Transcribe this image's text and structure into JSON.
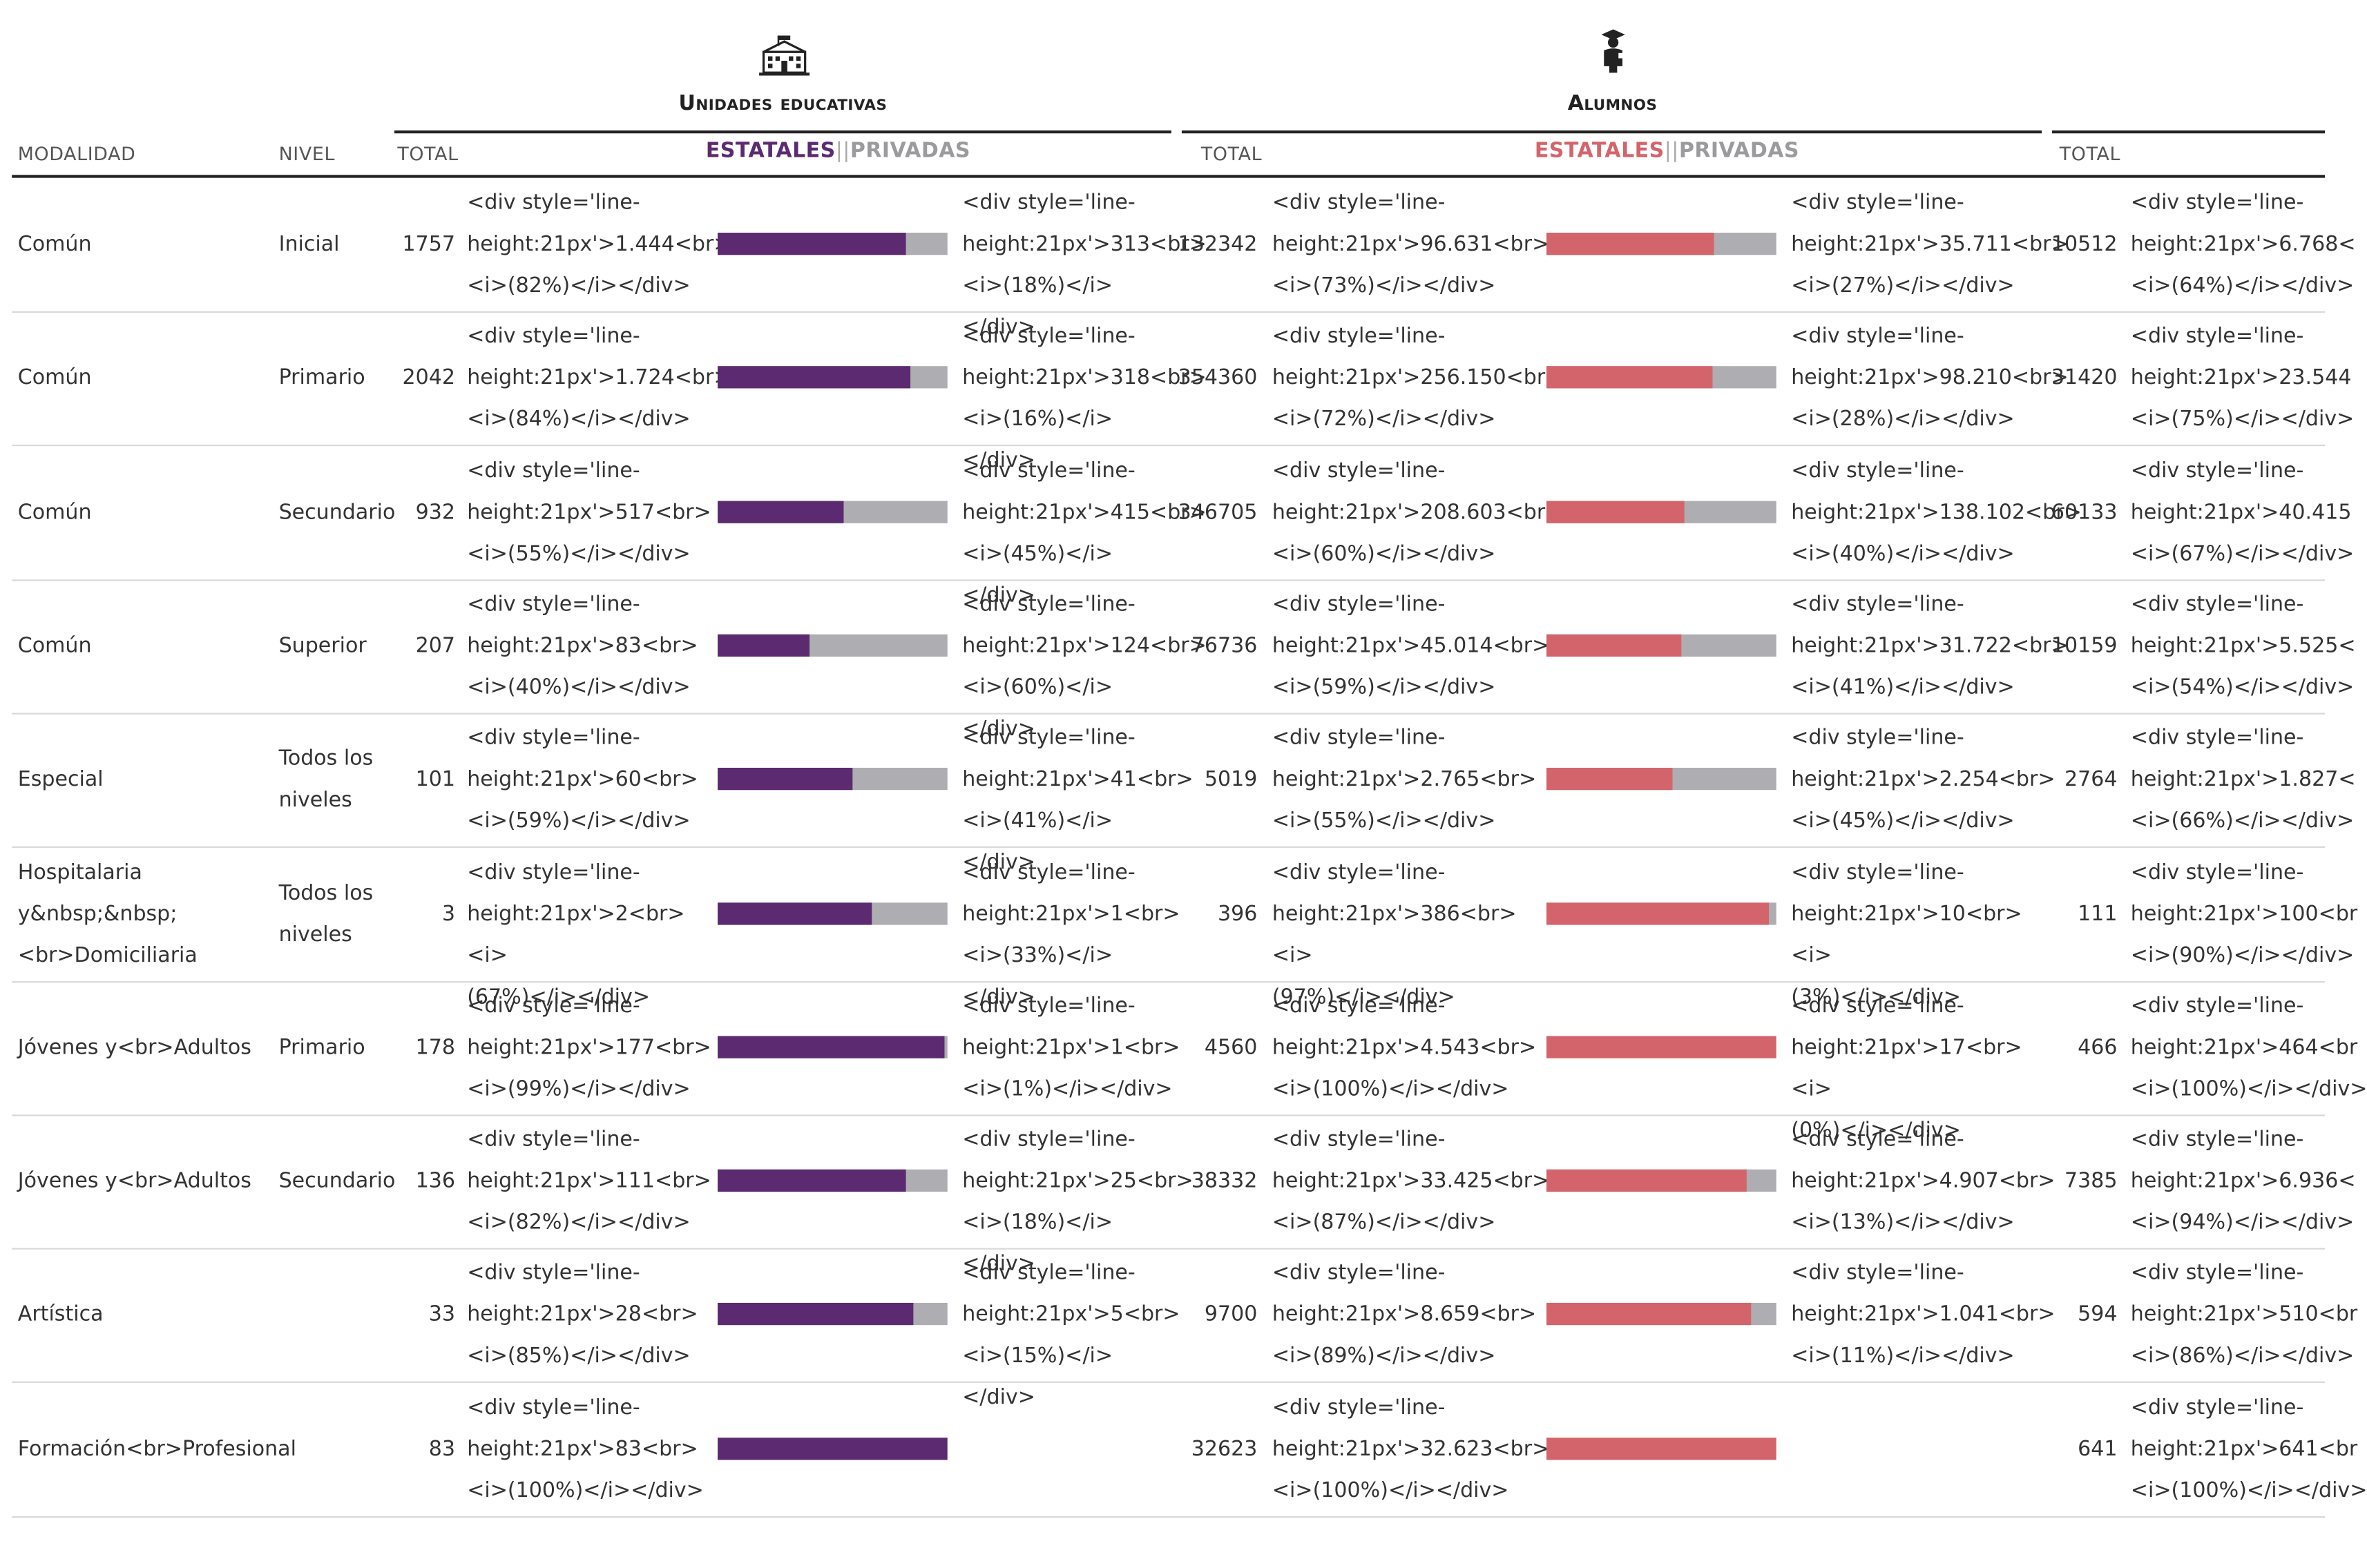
{
  "groups": [
    {
      "title": "Unidades educativas",
      "icon": "school-building-icon",
      "total_label": "TOTAL",
      "legend_state": "ESTATALES",
      "legend_sep": "||",
      "legend_private": "PRIVADAS",
      "state_color": "#5c2a70",
      "private_color": "#9b9b9e"
    },
    {
      "title": "Alumnos",
      "icon": "graduate-student-icon",
      "total_label": "TOTAL",
      "legend_state": "ESTATALES",
      "legend_sep": "||",
      "legend_private": "PRIVADAS",
      "state_color": "#d4646b",
      "private_color": "#9b9b9e"
    },
    {
      "title": "",
      "icon": "",
      "total_label": "TOTAL"
    }
  ],
  "columns": {
    "modalidad": "MODALIDAD",
    "nivel": "NIVEL"
  },
  "colors": {
    "bar_track": "#aeadb1",
    "purple": "#5c2a70",
    "red": "#d4646b"
  },
  "rows": [
    {
      "modalidad": "Común",
      "nivel": "Inicial",
      "ue_total": "1757",
      "ue_state_text": "<div style='line-\nheight:21px'>1.444<br>\n<i>(82%)</i></div>",
      "ue_state_pct": 82,
      "ue_priv_text": "<div style='line-\nheight:21px'>313<br>\n<i>(18%)</i></div>",
      "al_total": "132342",
      "al_state_text": "<div style='line-\nheight:21px'>96.631<br>\n<i>(73%)</i></div>",
      "al_state_pct": 73,
      "al_priv_text": "<div style='line-\nheight:21px'>35.711<br>\n<i>(27%)</i></div>",
      "c3_total": "10512",
      "c3_state_text": "<div style='line-\nheight:21px'>6.768<\n<i>(64%)</i></div>"
    },
    {
      "modalidad": "Común",
      "nivel": "Primario",
      "ue_total": "2042",
      "ue_state_text": "<div style='line-\nheight:21px'>1.724<br>\n<i>(84%)</i></div>",
      "ue_state_pct": 84,
      "ue_priv_text": "<div style='line-\nheight:21px'>318<br>\n<i>(16%)</i></div>",
      "al_total": "354360",
      "al_state_text": "<div style='line-\nheight:21px'>256.150<br>\n<i>(72%)</i></div>",
      "al_state_pct": 72,
      "al_priv_text": "<div style='line-\nheight:21px'>98.210<br>\n<i>(28%)</i></div>",
      "c3_total": "31420",
      "c3_state_text": "<div style='line-\nheight:21px'>23.544\n<i>(75%)</i></div>"
    },
    {
      "modalidad": "Común",
      "nivel": "Secundario",
      "ue_total": "932",
      "ue_state_text": "<div style='line-\nheight:21px'>517<br>\n<i>(55%)</i></div>",
      "ue_state_pct": 55,
      "ue_priv_text": "<div style='line-\nheight:21px'>415<br>\n<i>(45%)</i></div>",
      "al_total": "346705",
      "al_state_text": "<div style='line-\nheight:21px'>208.603<br>\n<i>(60%)</i></div>",
      "al_state_pct": 60,
      "al_priv_text": "<div style='line-\nheight:21px'>138.102<br>\n<i>(40%)</i></div>",
      "c3_total": "60133",
      "c3_state_text": "<div style='line-\nheight:21px'>40.415\n<i>(67%)</i></div>"
    },
    {
      "modalidad": "Común",
      "nivel": "Superior",
      "ue_total": "207",
      "ue_state_text": "<div style='line-\nheight:21px'>83<br>\n<i>(40%)</i></div>",
      "ue_state_pct": 40,
      "ue_priv_text": "<div style='line-\nheight:21px'>124<br>\n<i>(60%)</i></div>",
      "al_total": "76736",
      "al_state_text": "<div style='line-\nheight:21px'>45.014<br>\n<i>(59%)</i></div>",
      "al_state_pct": 59,
      "al_priv_text": "<div style='line-\nheight:21px'>31.722<br>\n<i>(41%)</i></div>",
      "c3_total": "10159",
      "c3_state_text": "<div style='line-\nheight:21px'>5.525<\n<i>(54%)</i></div>"
    },
    {
      "modalidad": "Especial",
      "nivel": "Todos los niveles",
      "ue_total": "101",
      "ue_state_text": "<div style='line-\nheight:21px'>60<br>\n<i>(59%)</i></div>",
      "ue_state_pct": 59,
      "ue_priv_text": "<div style='line-\nheight:21px'>41<br>\n<i>(41%)</i></div>",
      "al_total": "5019",
      "al_state_text": "<div style='line-\nheight:21px'>2.765<br>\n<i>(55%)</i></div>",
      "al_state_pct": 55,
      "al_priv_text": "<div style='line-\nheight:21px'>2.254<br>\n<i>(45%)</i></div>",
      "c3_total": "2764",
      "c3_state_text": "<div style='line-\nheight:21px'>1.827<\n<i>(66%)</i></div>"
    },
    {
      "modalidad": "Hospitalaria y&nbsp;&nbsp;<br>Domiciliaria",
      "nivel": "Todos los niveles",
      "ue_total": "3",
      "ue_state_text": "<div style='line-\nheight:21px'>2<br><i>\n(67%)</i></div>",
      "ue_state_pct": 67,
      "ue_priv_text": "<div style='line-\nheight:21px'>1<br>\n<i>(33%)</i></div>",
      "al_total": "396",
      "al_state_text": "<div style='line-\nheight:21px'>386<br><i>\n(97%)</i></div>",
      "al_state_pct": 97,
      "al_priv_text": "<div style='line-\nheight:21px'>10<br><i>\n(3%)</i></div>",
      "c3_total": "111",
      "c3_state_text": "<div style='line-\nheight:21px'>100<br\n<i>(90%)</i></div>"
    },
    {
      "modalidad": "Jóvenes y<br>Adultos",
      "nivel": "Primario",
      "ue_total": "178",
      "ue_state_text": "<div style='line-\nheight:21px'>177<br>\n<i>(99%)</i></div>",
      "ue_state_pct": 99,
      "ue_priv_text": "<div style='line-\nheight:21px'>1<br>\n<i>(1%)</i></div>",
      "al_total": "4560",
      "al_state_text": "<div style='line-\nheight:21px'>4.543<br>\n<i>(100%)</i></div>",
      "al_state_pct": 100,
      "al_priv_text": "<div style='line-\nheight:21px'>17<br><i>\n(0%)</i></div>",
      "c3_total": "466",
      "c3_state_text": "<div style='line-\nheight:21px'>464<br\n<i>(100%)</i></div>"
    },
    {
      "modalidad": "Jóvenes y<br>Adultos",
      "nivel": "Secundario",
      "ue_total": "136",
      "ue_state_text": "<div style='line-\nheight:21px'>111<br>\n<i>(82%)</i></div>",
      "ue_state_pct": 82,
      "ue_priv_text": "<div style='line-\nheight:21px'>25<br>\n<i>(18%)</i></div>",
      "al_total": "38332",
      "al_state_text": "<div style='line-\nheight:21px'>33.425<br>\n<i>(87%)</i></div>",
      "al_state_pct": 87,
      "al_priv_text": "<div style='line-\nheight:21px'>4.907<br>\n<i>(13%)</i></div>",
      "c3_total": "7385",
      "c3_state_text": "<div style='line-\nheight:21px'>6.936<\n<i>(94%)</i></div>"
    },
    {
      "modalidad": "Artística",
      "nivel": "",
      "ue_total": "33",
      "ue_state_text": "<div style='line-\nheight:21px'>28<br>\n<i>(85%)</i></div>",
      "ue_state_pct": 85,
      "ue_priv_text": "<div style='line-\nheight:21px'>5<br>\n<i>(15%)</i></div>",
      "al_total": "9700",
      "al_state_text": "<div style='line-\nheight:21px'>8.659<br>\n<i>(89%)</i></div>",
      "al_state_pct": 89,
      "al_priv_text": "<div style='line-\nheight:21px'>1.041<br>\n<i>(11%)</i></div>",
      "c3_total": "594",
      "c3_state_text": "<div style='line-\nheight:21px'>510<br\n<i>(86%)</i></div>"
    },
    {
      "modalidad": "Formación<br>Profesional",
      "nivel": "",
      "ue_total": "83",
      "ue_state_text": "<div style='line-\nheight:21px'>83<br>\n<i>(100%)</i></div>",
      "ue_state_pct": 100,
      "ue_priv_text": "",
      "al_total": "32623",
      "al_state_text": "<div style='line-\nheight:21px'>32.623<br>\n<i>(100%)</i></div>",
      "al_state_pct": 100,
      "al_priv_text": "",
      "c3_total": "641",
      "c3_state_text": "<div style='line-\nheight:21px'>641<br\n<i>(100%)</i></div>"
    }
  ]
}
